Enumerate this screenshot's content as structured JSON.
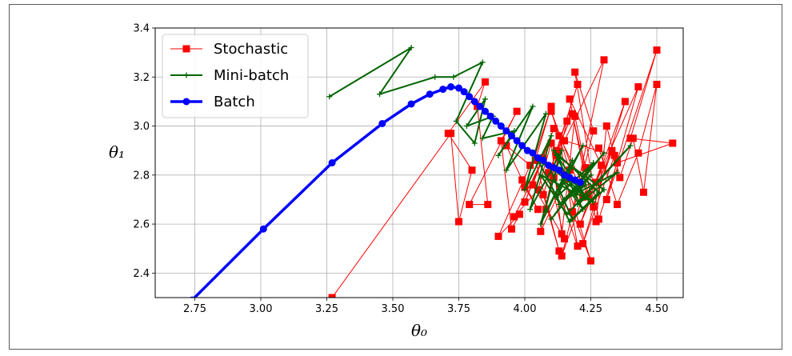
{
  "chart_data": {
    "type": "line",
    "xlabel": "θ₀",
    "ylabel": "θ₁",
    "xlim": [
      2.6,
      4.6
    ],
    "ylim": [
      2.3,
      3.4
    ],
    "xticks": [
      "2.75",
      "3.00",
      "3.25",
      "3.50",
      "3.75",
      "4.00",
      "4.25",
      "4.50"
    ],
    "yticks": [
      "2.4",
      "2.6",
      "2.8",
      "3.0",
      "3.2",
      "3.4"
    ],
    "grid": true,
    "legend_position": "top-left",
    "series": [
      {
        "name": "Stochastic",
        "color": "#ff0000",
        "marker": "square",
        "x": [
          3.27,
          3.72,
          3.75,
          3.8,
          3.71,
          3.85,
          3.82,
          3.86,
          3.79,
          3.97,
          3.91,
          3.95,
          3.98,
          3.9,
          4.02,
          3.93,
          3.99,
          4.05,
          4.0,
          4.1,
          4.04,
          4.13,
          4.07,
          4.2,
          4.12,
          4.25,
          4.18,
          4.3,
          4.15,
          4.34,
          4.22,
          4.38,
          4.27,
          4.43,
          4.31,
          4.5,
          4.4,
          4.56,
          4.35,
          4.28,
          4.19,
          4.26,
          4.14,
          4.22,
          4.1,
          4.17,
          4.06,
          4.12,
          4.08,
          4.16,
          4.11,
          4.2,
          4.13,
          4.24,
          4.17,
          4.29,
          4.21,
          4.33,
          4.26,
          4.18,
          4.09,
          4.15,
          4.03,
          4.11,
          4.0,
          4.07,
          3.96,
          4.05,
          4.1,
          4.14,
          4.19,
          4.23,
          4.27,
          4.31,
          4.36,
          4.41,
          4.45,
          4.5,
          4.43,
          4.35,
          4.28
        ],
        "y": [
          2.3,
          2.97,
          2.61,
          2.82,
          2.97,
          3.18,
          3.08,
          2.68,
          2.68,
          3.06,
          2.94,
          2.58,
          2.64,
          2.55,
          2.84,
          2.92,
          2.78,
          2.66,
          2.75,
          3.08,
          2.86,
          2.49,
          2.72,
          3.17,
          2.9,
          2.45,
          2.65,
          3.27,
          2.94,
          2.88,
          2.52,
          3.1,
          2.77,
          3.16,
          2.7,
          3.31,
          2.95,
          2.93,
          2.85,
          2.62,
          3.22,
          2.98,
          2.47,
          2.71,
          3.06,
          2.82,
          2.57,
          2.88,
          2.66,
          3.02,
          2.79,
          2.51,
          2.96,
          2.72,
          3.11,
          2.84,
          2.6,
          2.9,
          2.67,
          3.05,
          2.81,
          2.54,
          2.76,
          2.99,
          2.69,
          2.87,
          2.63,
          2.74,
          2.93,
          2.56,
          3.04,
          2.83,
          2.61,
          3.0,
          2.79,
          2.95,
          2.73,
          3.17,
          2.89,
          2.68,
          2.91
        ]
      },
      {
        "name": "Mini-batch",
        "color": "#006400",
        "marker": "plus",
        "x": [
          3.26,
          3.57,
          3.45,
          3.66,
          3.73,
          3.84,
          3.74,
          3.81,
          3.85,
          3.78,
          3.88,
          3.84,
          3.96,
          3.9,
          4.03,
          3.93,
          4.08,
          4.0,
          4.1,
          4.02,
          4.14,
          4.06,
          4.18,
          4.08,
          4.22,
          4.12,
          4.26,
          4.1,
          4.3,
          4.15,
          4.35,
          4.2,
          4.4,
          4.16,
          4.06,
          4.24,
          4.12,
          4.3,
          4.18,
          4.09,
          4.26,
          4.14,
          4.22,
          4.11,
          4.28,
          4.17,
          4.05,
          4.21,
          4.13,
          4.25,
          4.19,
          4.23
        ],
        "y": [
          3.12,
          3.32,
          3.13,
          3.2,
          3.2,
          3.26,
          3.02,
          2.93,
          3.11,
          3.0,
          3.04,
          2.95,
          2.98,
          2.88,
          3.08,
          2.82,
          3.05,
          2.74,
          2.96,
          2.66,
          2.9,
          2.6,
          2.86,
          2.65,
          2.92,
          2.71,
          2.85,
          2.62,
          2.89,
          2.7,
          2.81,
          2.68,
          2.92,
          2.64,
          2.8,
          2.7,
          2.88,
          2.74,
          2.62,
          2.84,
          2.69,
          2.78,
          2.66,
          2.9,
          2.73,
          2.61,
          2.86,
          2.75,
          2.68,
          2.8,
          2.72,
          2.76
        ]
      },
      {
        "name": "Batch",
        "color": "#0000ff",
        "marker": "circle",
        "x": [
          2.74,
          3.01,
          3.27,
          3.46,
          3.57,
          3.64,
          3.69,
          3.72,
          3.75,
          3.77,
          3.79,
          3.81,
          3.83,
          3.85,
          3.87,
          3.89,
          3.91,
          3.93,
          3.95,
          3.97,
          3.99,
          4.01,
          4.03,
          4.05,
          4.07,
          4.09,
          4.11,
          4.13,
          4.15,
          4.17,
          4.19,
          4.21
        ],
        "y": [
          2.29,
          2.58,
          2.85,
          3.01,
          3.09,
          3.13,
          3.15,
          3.16,
          3.155,
          3.14,
          3.12,
          3.1,
          3.08,
          3.06,
          3.04,
          3.02,
          3.0,
          2.98,
          2.96,
          2.94,
          2.92,
          2.9,
          2.89,
          2.87,
          2.86,
          2.84,
          2.83,
          2.82,
          2.8,
          2.79,
          2.78,
          2.77
        ]
      }
    ]
  }
}
